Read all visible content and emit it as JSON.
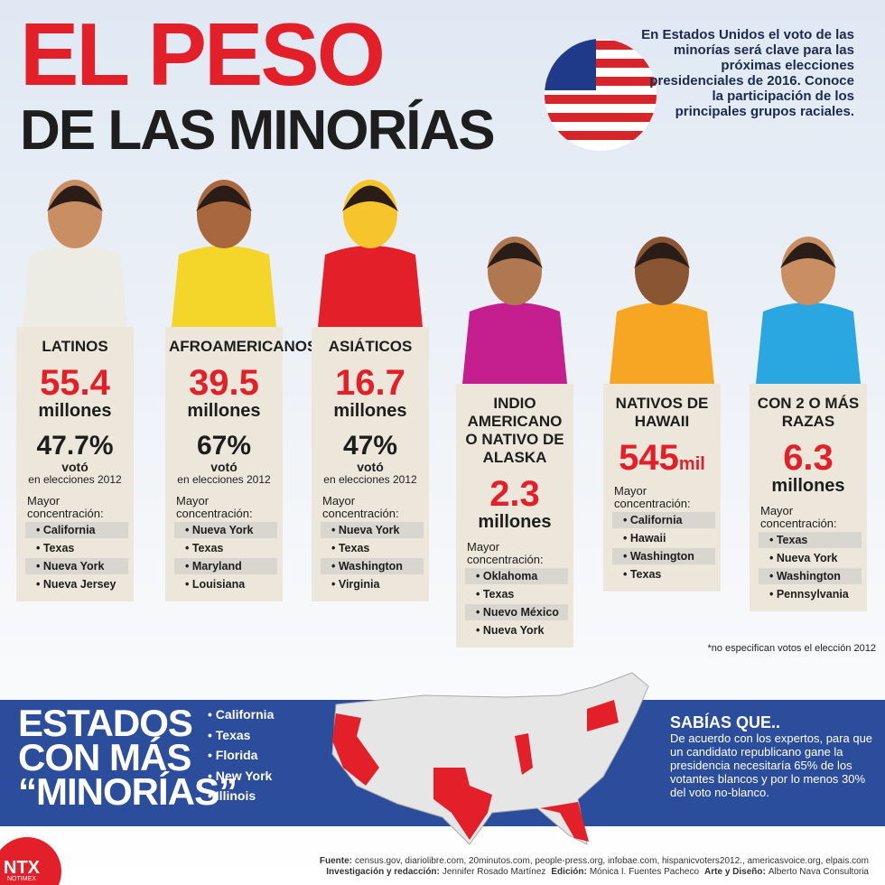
{
  "header": {
    "title_line1": "EL PESO",
    "title_line2": "DE LAS MINORÍAS",
    "intro": "En Estados Unidos el voto de las minorías será clave para las próximas elecciones presidenciales de 2016. Conoce la participación de los principales grupos raciales."
  },
  "groups": [
    {
      "name": "LATINOS",
      "number": "55.4",
      "unit": "millones",
      "vote": "47.7%",
      "vote_label": "votó",
      "vote_context": "en elecciones 2012",
      "concentration_label": "Mayor concentración:",
      "states": [
        "California",
        "Texas",
        "Nueva York",
        "Nueva Jersey"
      ]
    },
    {
      "name": "AFROAMERICANOS",
      "number": "39.5",
      "unit": "millones",
      "vote": "67%",
      "vote_label": "votó",
      "vote_context": "en elecciones 2012",
      "concentration_label": "Mayor concentración:",
      "states": [
        "Nueva York",
        "Texas",
        "Maryland",
        "Louisiana"
      ]
    },
    {
      "name": "ASIÁTICOS",
      "number": "16.7",
      "unit": "millones",
      "vote": "47%",
      "vote_label": "votó",
      "vote_context": "en elecciones 2012",
      "concentration_label": "Mayor concentración:",
      "states": [
        "Nueva York",
        "Texas",
        "Washington",
        "Virginia"
      ]
    },
    {
      "name": "INDIO AMERICANO O NATIVO DE ALASKA",
      "number": "2.3",
      "unit": "millones",
      "concentration_label": "Mayor concentración:",
      "states": [
        "Oklahoma",
        "Texas",
        "Nuevo México",
        "Nueva York"
      ]
    },
    {
      "name": "NATIVOS DE HAWAII",
      "number": "545",
      "unit": "mil",
      "concentration_label": "Mayor concentración:",
      "states": [
        "California",
        "Hawaii",
        "Washington",
        "Texas"
      ]
    },
    {
      "name": "CON 2 O MÁS RAZAS",
      "number": "6.3",
      "unit": "millones",
      "concentration_label": "Mayor concentración:",
      "states": [
        "Texas",
        "Nueva York",
        "Washington",
        "Pennsylvania"
      ]
    }
  ],
  "footnote": "*no especifican votos el elección 2012",
  "states_section": {
    "title_lines": [
      "ESTADOS",
      "CON MÁS",
      "“MINORÍAS”"
    ],
    "states": [
      "California",
      "Texas",
      "Florida",
      "New York",
      "Illinois"
    ]
  },
  "did_you_know": {
    "title": "SABÍAS QUE..",
    "text": "De acuerdo con los expertos, para que un candidato republicano gane la presidencia necesitaría 65% de los votantes blancos y por lo menos 30% del voto no-blanco."
  },
  "credits": [
    {
      "label": "Fuente:",
      "text": "census.gov, diariolibre.com, 20minutos.com, people-press.org, infobae.com, hispanicvoters2012., americasvoice.org, elpais.com"
    },
    {
      "label": "Investigación y redacción:",
      "text": "Jennifer Rosado Martínez"
    },
    {
      "label": "Edición:",
      "text": "Mónica I. Fuentes Pacheco"
    },
    {
      "label": "Arte y Diseño:",
      "text": "Alberto Nava Consultoria"
    }
  ],
  "logo": {
    "name": "NTX",
    "subtitle": "NOTIMEX"
  }
}
